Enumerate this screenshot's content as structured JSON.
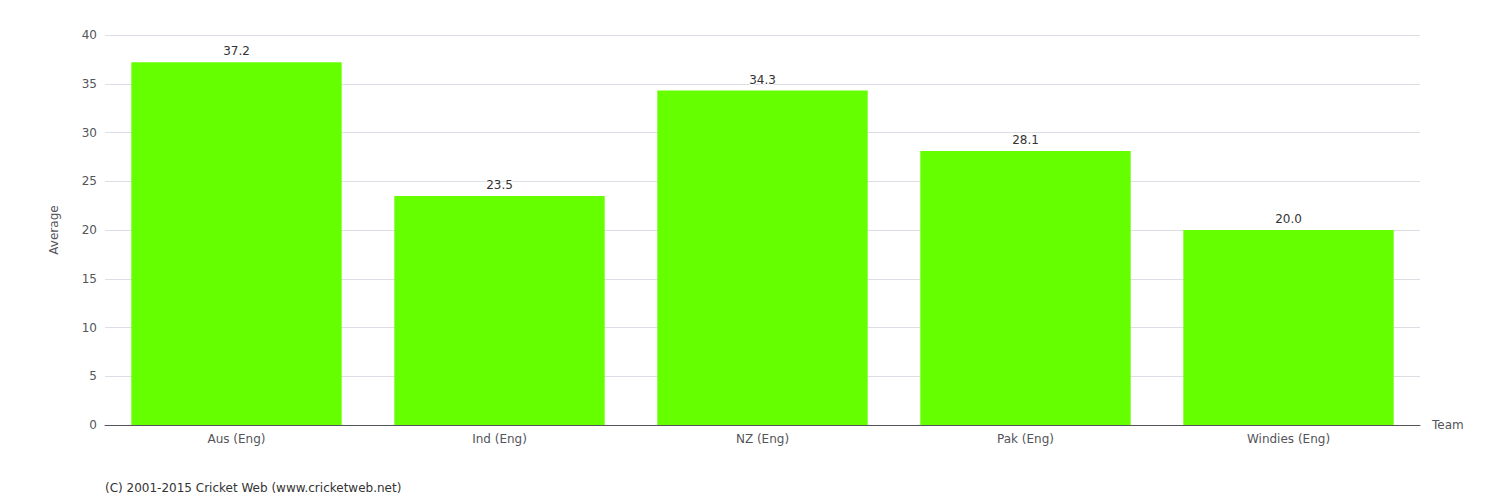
{
  "chart_data": {
    "type": "bar",
    "categories": [
      "Aus (Eng)",
      "Ind (Eng)",
      "NZ (Eng)",
      "Pak (Eng)",
      "Windies (Eng)"
    ],
    "values": [
      37.2,
      23.5,
      34.3,
      28.1,
      20.0
    ],
    "value_labels": [
      "37.2",
      "23.5",
      "34.3",
      "28.1",
      "20.0"
    ],
    "data_labels": true,
    "color": "#66ff00",
    "xlabel": "Team",
    "ylabel": "Average",
    "ylim": [
      0,
      40
    ],
    "yticks": [
      0,
      5,
      10,
      15,
      20,
      25,
      30,
      35,
      40
    ],
    "grid": true,
    "annotations": [
      "(C) 2001-2015 Cricket Web (www.cricketweb.net)"
    ]
  }
}
